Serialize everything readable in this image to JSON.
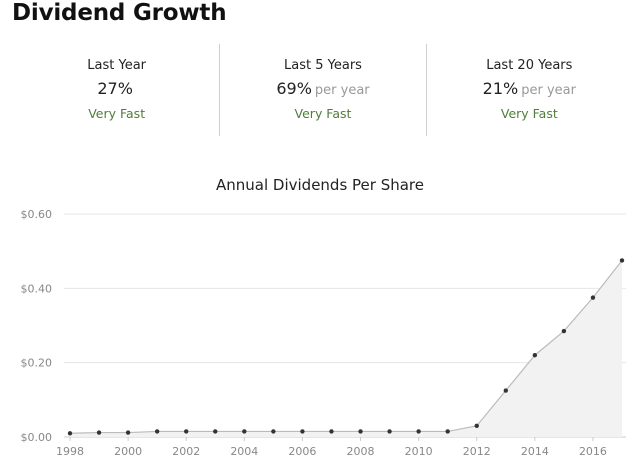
{
  "header": {
    "title": "Dividend Growth"
  },
  "stats": [
    {
      "label": "Last Year",
      "value": "27%",
      "per": "",
      "rating": "Very Fast"
    },
    {
      "label": "Last 5 Years",
      "value": "69%",
      "per": "per year",
      "rating": "Very Fast"
    },
    {
      "label": "Last 20 Years",
      "value": "21%",
      "per": "per year",
      "rating": "Very Fast"
    }
  ],
  "colors": {
    "rating": "#4f7d3a",
    "line": "#bbbbbb",
    "area": "#f2f2f2",
    "point": "#333333",
    "grid": "#e6e6e6"
  },
  "chart_data": {
    "type": "area",
    "title": "Annual Dividends Per Share",
    "xlabel": "",
    "ylabel": "",
    "x": [
      1998,
      1999,
      2000,
      2001,
      2002,
      2003,
      2004,
      2005,
      2006,
      2007,
      2008,
      2009,
      2010,
      2011,
      2012,
      2013,
      2014,
      2015,
      2016,
      2017
    ],
    "values": [
      0.01,
      0.012,
      0.012,
      0.015,
      0.015,
      0.015,
      0.015,
      0.015,
      0.015,
      0.015,
      0.015,
      0.015,
      0.015,
      0.015,
      0.03,
      0.125,
      0.22,
      0.285,
      0.375,
      0.475
    ],
    "xticks": [
      "1998",
      "2000",
      "2002",
      "2004",
      "2006",
      "2008",
      "2010",
      "2012",
      "2014",
      "2016"
    ],
    "yticks": [
      "$0.00",
      "$0.20",
      "$0.40",
      "$0.60"
    ],
    "ylim": [
      0,
      0.6
    ],
    "grid": true,
    "legend": "none"
  }
}
